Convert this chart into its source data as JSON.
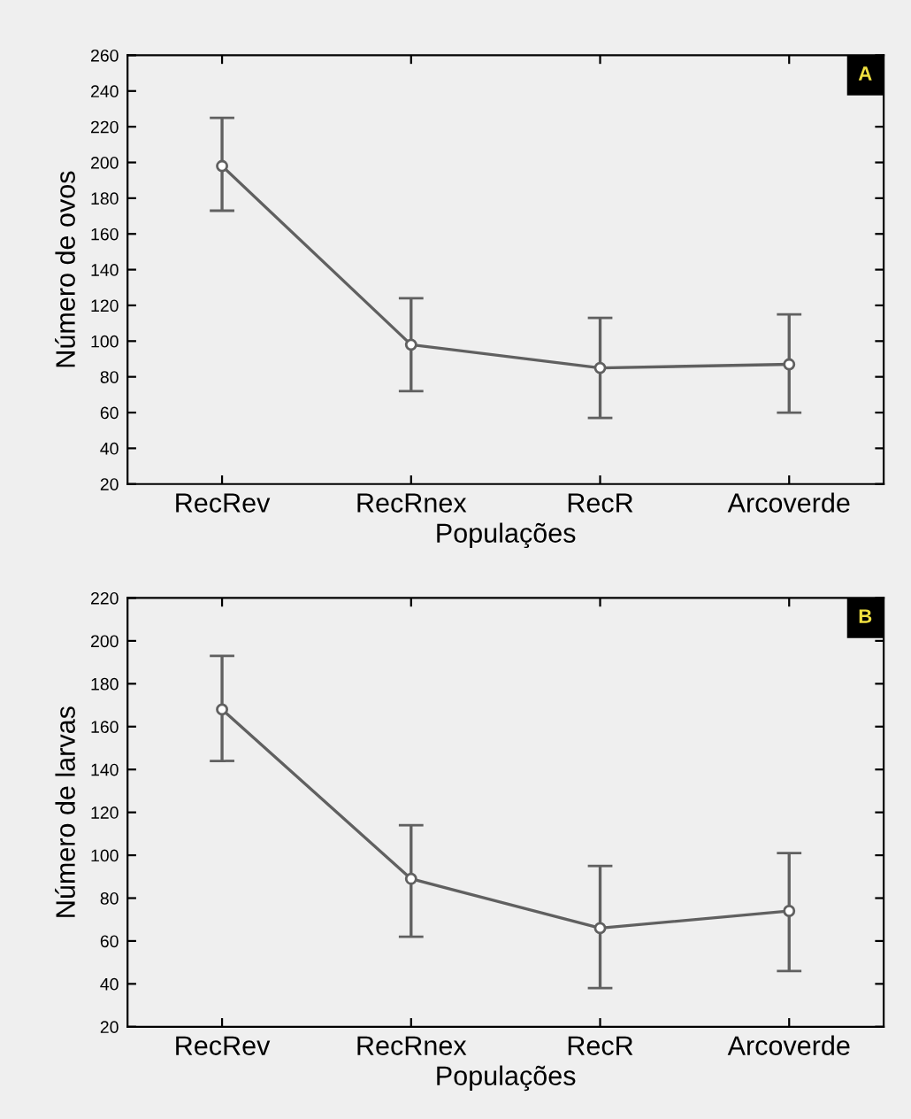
{
  "chart_data": [
    {
      "type": "line",
      "xlabel": "Populações",
      "ylabel": "Número de ovos",
      "annotations": [
        "A"
      ],
      "categories": [
        "RecRev",
        "RecRnex",
        "RecR",
        "Arcoverde"
      ],
      "series": [
        {
          "color": "#606060",
          "values": [
            198,
            98,
            85,
            87
          ],
          "errors": [
            [
              173,
              225
            ],
            [
              72,
              124
            ],
            [
              57,
              113
            ],
            [
              60,
              115
            ]
          ]
        }
      ],
      "ylim": [
        20,
        260
      ],
      "yticks": [
        20,
        40,
        60,
        80,
        100,
        120,
        140,
        160,
        180,
        200,
        220,
        240,
        260
      ],
      "marker": "circle",
      "line_style": "solid",
      "grid": false
    },
    {
      "type": "line",
      "xlabel": "Populações",
      "ylabel": "Número de larvas",
      "annotations": [
        "B"
      ],
      "categories": [
        "RecRev",
        "RecRnex",
        "RecR",
        "Arcoverde"
      ],
      "series": [
        {
          "color": "#606060",
          "values": [
            168,
            89,
            66,
            74
          ],
          "errors": [
            [
              144,
              193
            ],
            [
              62,
              114
            ],
            [
              38,
              95
            ],
            [
              46,
              101
            ]
          ]
        }
      ],
      "ylim": [
        20,
        220
      ],
      "yticks": [
        20,
        40,
        60,
        80,
        100,
        120,
        140,
        160,
        180,
        200,
        220
      ],
      "marker": "circle",
      "line_style": "solid",
      "grid": false
    }
  ]
}
